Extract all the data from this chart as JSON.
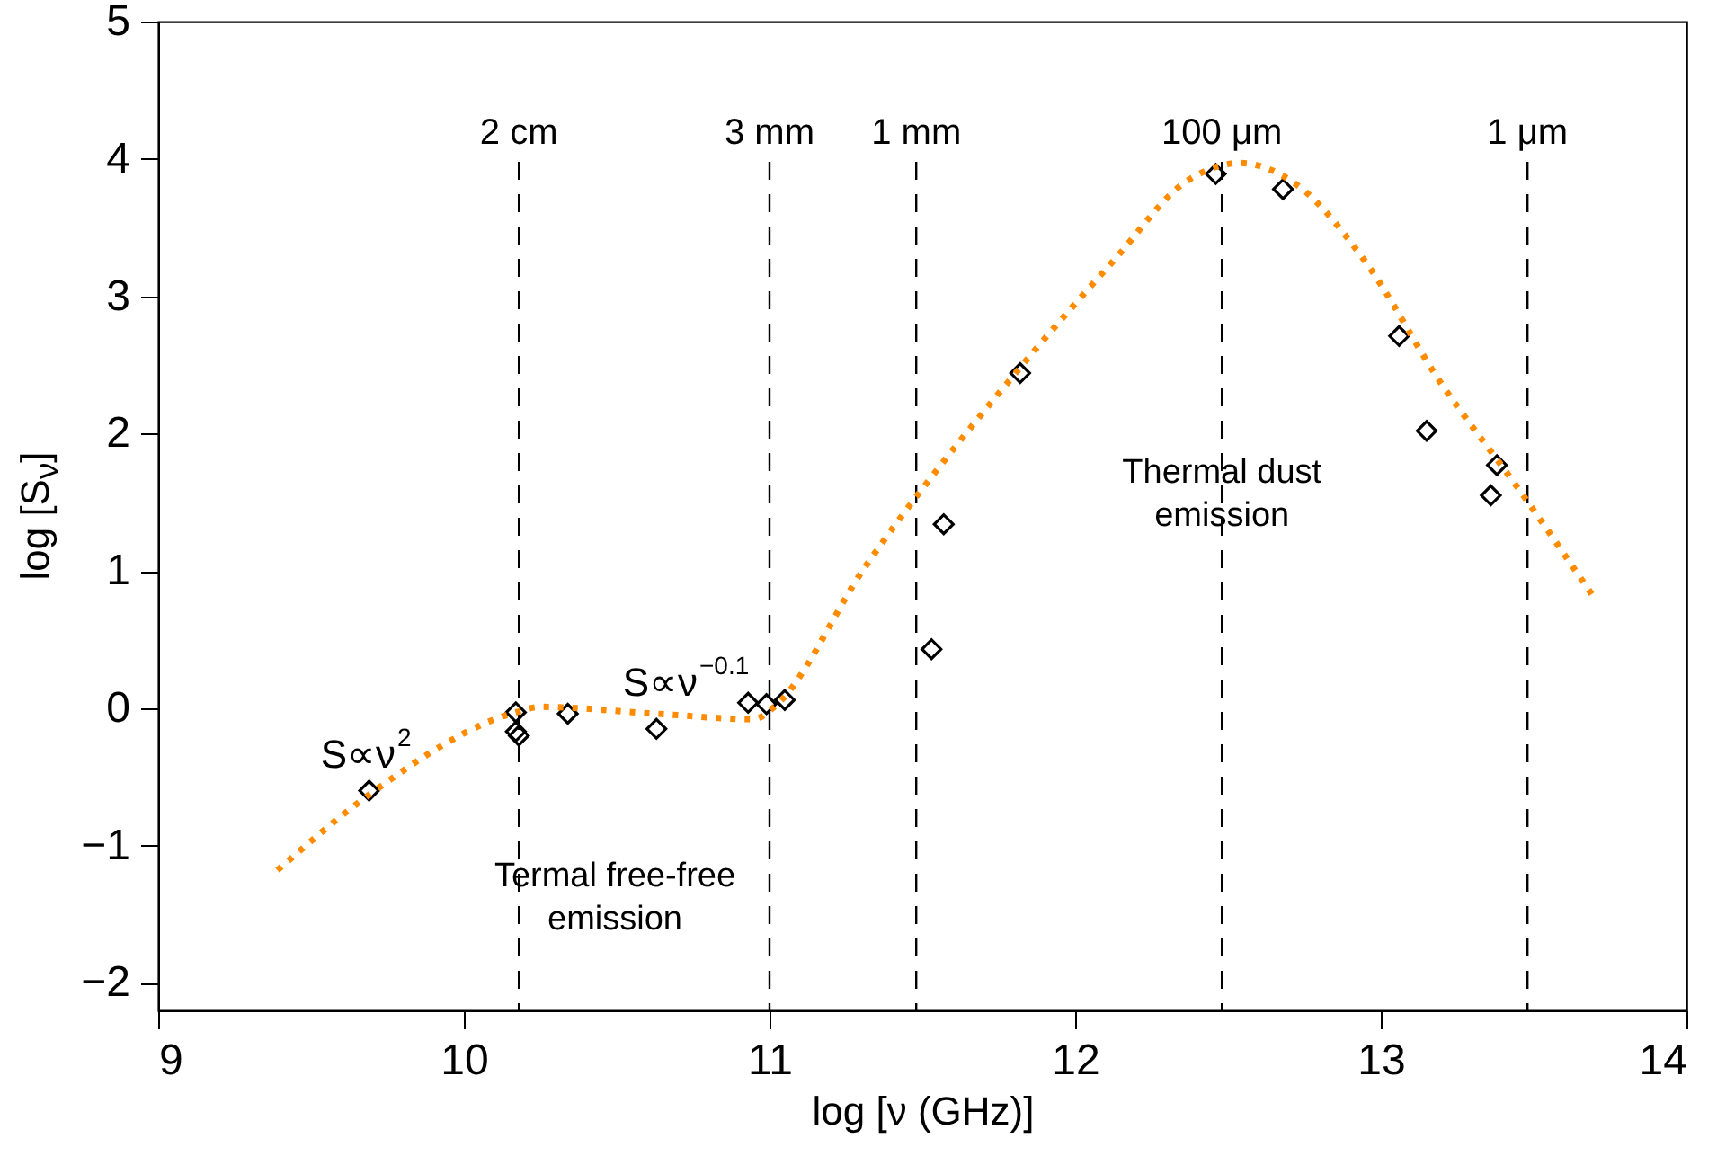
{
  "chart_data": {
    "type": "scatter",
    "xlabel": "log [ν (GHz)]",
    "ylabel": "log [S$_{ν}$]",
    "xlim": [
      9,
      14
    ],
    "xticks": [
      9,
      10,
      11,
      12,
      13,
      14
    ],
    "ylim": [
      -2.2,
      5
    ],
    "yticks": [
      -2,
      -1,
      0,
      1,
      2,
      3,
      4,
      5
    ],
    "series": [
      {
        "marker": "diamond",
        "color": "#000000",
        "x": [
          9.69,
          10.17,
          10.17,
          10.18,
          10.34,
          10.63,
          10.93,
          10.99,
          11.05,
          11.53,
          11.57,
          11.82,
          12.46,
          12.68,
          13.06,
          13.15,
          13.36,
          13.38
        ],
        "values": [
          -0.6,
          -0.03,
          -0.17,
          -0.2,
          -0.04,
          -0.15,
          0.04,
          0.03,
          0.06,
          0.43,
          1.34,
          2.44,
          3.89,
          3.78,
          2.71,
          2.02,
          1.55,
          1.77
        ]
      },
      {
        "type": "line",
        "line_style": "dotted",
        "color": "#ff8c00",
        "x": [
          9.39,
          9.69,
          10.17,
          10.25,
          10.63,
          10.95,
          11.01,
          11.31,
          11.82,
          12.13,
          12.36,
          12.54,
          12.72,
          12.95,
          13.19,
          13.45,
          13.69
        ],
        "values": [
          -1.18,
          -0.63,
          -0.03,
          0.01,
          -0.04,
          -0.08,
          0,
          1.02,
          2.48,
          3.27,
          3.83,
          3.97,
          3.82,
          3.25,
          2.39,
          1.6,
          0.83
        ]
      }
    ],
    "ref_lines": [
      {
        "axis": "x",
        "value": 10.18,
        "label": "2 cm",
        "line_style": "dashed"
      },
      {
        "axis": "x",
        "value": 11.0,
        "label": "3 mm",
        "line_style": "dashed"
      },
      {
        "axis": "x",
        "value": 11.48,
        "label": "1 mm",
        "line_style": "dashed"
      },
      {
        "axis": "x",
        "value": 12.48,
        "label": "100 μm",
        "line_style": "dashed"
      },
      {
        "axis": "x",
        "value": 13.48,
        "label": "1 μm",
        "line_style": "dashed"
      }
    ],
    "annotations": [
      "S∝ν$^{2}$",
      "S∝ν$^{−0.1}$",
      "Termal free-free\nemission",
      {
        "text": "Thermal dust\nemission",
        "x": 12.48,
        "y": 1.72
      }
    ]
  }
}
